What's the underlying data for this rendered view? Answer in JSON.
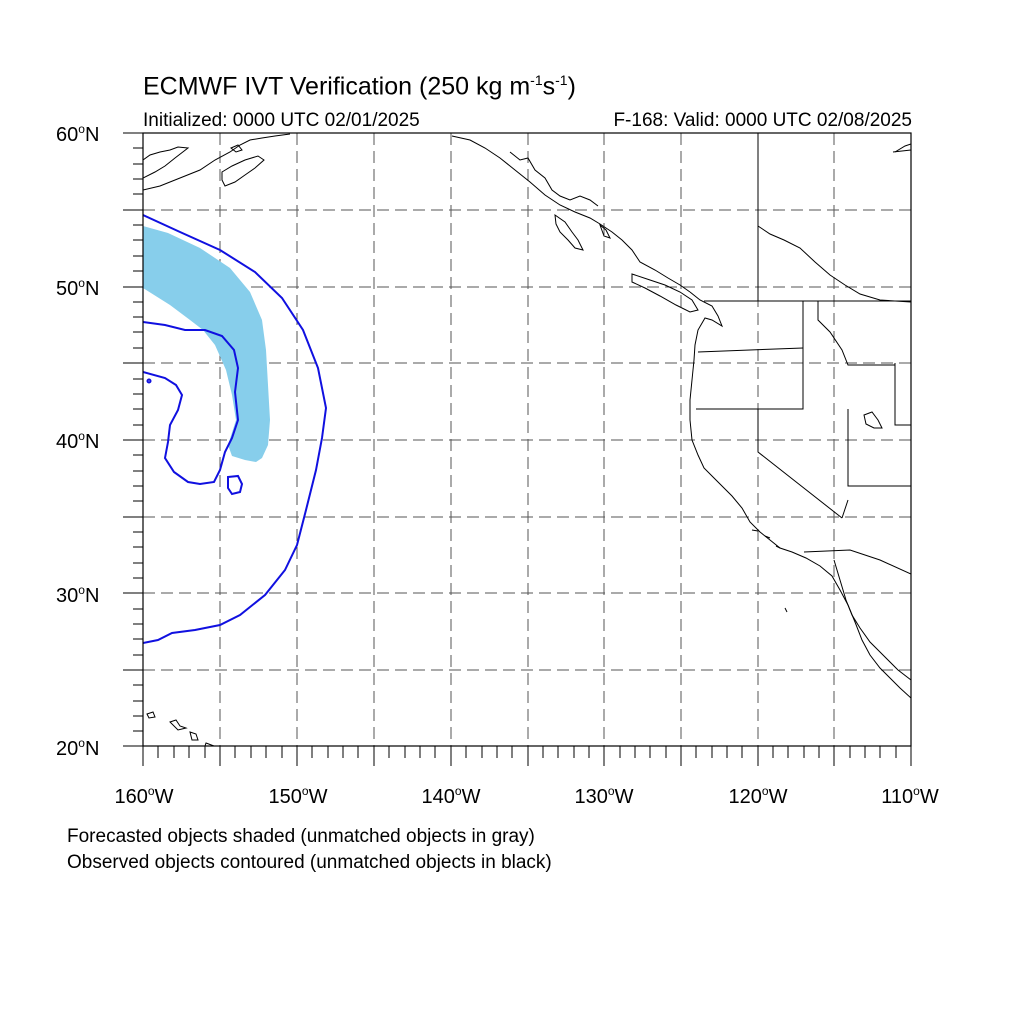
{
  "title": {
    "main": "ECMWF IVT Verification (250 kg m",
    "exp1": "-1",
    "mid": "s",
    "exp2": "-1",
    "close": ")"
  },
  "subtitle": {
    "initialized": "Initialized: 0000 UTC 02/01/2025",
    "valid": "F-168: Valid: 0000 UTC 02/08/2025"
  },
  "map": {
    "lon_range": [
      -160,
      -110
    ],
    "lat_range": [
      20,
      60
    ],
    "grid": true,
    "lat_labels": [
      {
        "value": "60",
        "suffix": "N"
      },
      {
        "value": "50",
        "suffix": "N"
      },
      {
        "value": "40",
        "suffix": "N"
      },
      {
        "value": "30",
        "suffix": "N"
      },
      {
        "value": "20",
        "suffix": "N"
      }
    ],
    "lon_labels": [
      {
        "value": "160",
        "suffix": "W"
      },
      {
        "value": "150",
        "suffix": "W"
      },
      {
        "value": "140",
        "suffix": "W"
      },
      {
        "value": "130",
        "suffix": "W"
      },
      {
        "value": "120",
        "suffix": "W"
      },
      {
        "value": "110",
        "suffix": "W"
      }
    ],
    "colors": {
      "forecast_fill": "#87CEEB",
      "observed_contour": "#1010E0",
      "coastline": "#000000",
      "grid": "#555555"
    }
  },
  "notes": {
    "line1": "Forecasted objects shaded (unmatched objects in gray)",
    "line2": "Observed objects contoured (unmatched objects in black)"
  }
}
